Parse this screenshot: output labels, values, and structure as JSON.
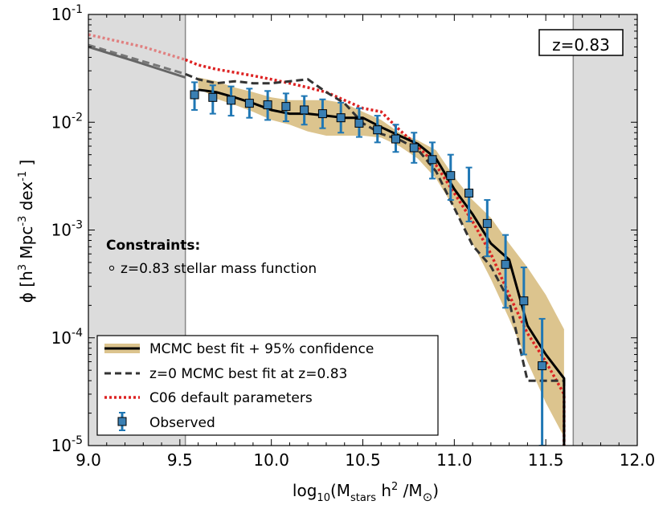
{
  "chart_data": {
    "type": "line",
    "xlabel_parts": {
      "base": "log",
      "sub1": "10",
      "mid": "(M",
      "sub2": "stars",
      "mid2": " h",
      "sup": "2",
      "tail": " /M",
      "sub3": "⊙",
      "end": ")"
    },
    "ylabel_parts": {
      "prefix": "ϕ [h",
      "sup1": "3",
      "mid": " Mpc",
      "sup2": "-3",
      "mid2": " dex",
      "sup3": "-1",
      "end": " ]"
    },
    "xlim": [
      9.0,
      12.0
    ],
    "ylim": [
      1e-05,
      0.1
    ],
    "yscale": "log",
    "xticks": [
      "9.0",
      "9.5",
      "10.0",
      "10.5",
      "11.0",
      "11.5",
      "12.0"
    ],
    "yticks": [
      {
        "base": "10",
        "exp": "-5"
      },
      {
        "base": "10",
        "exp": "-4"
      },
      {
        "base": "10",
        "exp": "-3"
      },
      {
        "base": "10",
        "exp": "-2"
      },
      {
        "base": "10",
        "exp": "-1"
      }
    ],
    "excluded_regions": [
      [
        9.0,
        9.53
      ],
      [
        11.65,
        12.0
      ]
    ],
    "redshift_label": "z=0.83",
    "constraints_title": "Constraints:",
    "constraints_item": "z=0.83 stellar mass function",
    "legend": [
      "MCMC best fit + 95% confidence",
      "z=0 MCMC best fit at z=0.83",
      "C06 default parameters",
      "Observed"
    ],
    "colors": {
      "band": "#dcc48e",
      "best": "#000000",
      "z0": "#333333",
      "c06": "#dd2222",
      "obs": "#1f77b4",
      "shade": "#dcdcdc"
    },
    "confidence_band": {
      "x": [
        9.6,
        9.7,
        9.8,
        9.9,
        10.0,
        10.1,
        10.2,
        10.3,
        10.4,
        10.5,
        10.6,
        10.7,
        10.8,
        10.9,
        11.0,
        11.1,
        11.2,
        11.3,
        11.4,
        11.5,
        11.6
      ],
      "upper": [
        0.026,
        0.024,
        0.021,
        0.019,
        0.017,
        0.016,
        0.016,
        0.016,
        0.015,
        0.0125,
        0.0105,
        0.008,
        0.0068,
        0.0055,
        0.0031,
        0.0019,
        0.0013,
        0.00075,
        0.00045,
        0.00025,
        0.00012
      ],
      "lower": [
        0.021,
        0.0165,
        0.0145,
        0.0125,
        0.0105,
        0.0095,
        0.0082,
        0.0075,
        0.0075,
        0.0075,
        0.0072,
        0.006,
        0.0046,
        0.003,
        0.0016,
        0.00075,
        0.00035,
        0.00015,
        6e-05,
        2.5e-05,
        1.2e-05
      ]
    },
    "best_fit": {
      "x": [
        9.6,
        9.7,
        9.8,
        9.9,
        10.0,
        10.1,
        10.2,
        10.3,
        10.4,
        10.5,
        10.6,
        10.7,
        10.8,
        10.9,
        11.0,
        11.1,
        11.2,
        11.3,
        11.4,
        11.5,
        11.6,
        11.6
      ],
      "y": [
        0.02,
        0.019,
        0.017,
        0.015,
        0.013,
        0.012,
        0.012,
        0.0115,
        0.011,
        0.011,
        0.009,
        0.0075,
        0.0063,
        0.0046,
        0.0024,
        0.0014,
        0.00075,
        0.00053,
        0.00013,
        7e-05,
        4.2e-05,
        1e-05
      ]
    },
    "best_fit_extension": {
      "x": [
        9.0,
        9.25,
        9.53
      ],
      "y": [
        0.05,
        0.037,
        0.026
      ]
    },
    "z0_fit": {
      "x": [
        9.0,
        9.53,
        9.6,
        9.7,
        9.8,
        9.9,
        10.0,
        10.1,
        10.2,
        10.3,
        10.4,
        10.5,
        10.6,
        10.7,
        10.8,
        10.9,
        11.0,
        11.1,
        11.2,
        11.3,
        11.4,
        11.5,
        11.6,
        11.6
      ],
      "y": [
        0.052,
        0.028,
        0.025,
        0.023,
        0.024,
        0.023,
        0.023,
        0.024,
        0.025,
        0.019,
        0.015,
        0.0098,
        0.0078,
        0.0069,
        0.0056,
        0.0035,
        0.0016,
        0.00072,
        0.00046,
        0.00022,
        4e-05,
        4e-05,
        4e-05,
        1e-05
      ]
    },
    "c06": {
      "x": [
        9.0,
        9.3,
        9.53,
        9.6,
        9.7,
        9.8,
        9.9,
        10.0,
        10.1,
        10.2,
        10.3,
        10.4,
        10.5,
        10.6,
        10.7,
        10.8,
        10.9,
        11.0,
        11.1,
        11.2,
        11.3,
        11.4,
        11.5,
        11.6,
        11.6
      ],
      "y": [
        0.065,
        0.05,
        0.038,
        0.034,
        0.031,
        0.029,
        0.027,
        0.025,
        0.023,
        0.021,
        0.019,
        0.016,
        0.0135,
        0.0125,
        0.0085,
        0.006,
        0.004,
        0.0022,
        0.0012,
        0.0006,
        0.00025,
        0.00011,
        6e-05,
        3e-05,
        1e-05
      ]
    },
    "observed": {
      "x": [
        9.58,
        9.68,
        9.78,
        9.88,
        9.98,
        10.08,
        10.18,
        10.28,
        10.38,
        10.48,
        10.58,
        10.68,
        10.78,
        10.88,
        10.98,
        11.08,
        11.18,
        11.28,
        11.38,
        11.48
      ],
      "y": [
        0.018,
        0.017,
        0.016,
        0.015,
        0.0145,
        0.014,
        0.013,
        0.012,
        0.011,
        0.0098,
        0.0085,
        0.007,
        0.0058,
        0.0045,
        0.0032,
        0.0022,
        0.00115,
        0.00048,
        0.00022,
        5.5e-05
      ],
      "err_low": [
        0.013,
        0.012,
        0.0115,
        0.011,
        0.0105,
        0.0102,
        0.0095,
        0.0088,
        0.008,
        0.0073,
        0.0065,
        0.0053,
        0.0042,
        0.003,
        0.0019,
        0.0012,
        0.00057,
        0.00019,
        7e-05,
        1e-05
      ],
      "err_high": [
        0.0235,
        0.022,
        0.0215,
        0.0205,
        0.0195,
        0.0185,
        0.0175,
        0.0163,
        0.0152,
        0.0135,
        0.0115,
        0.0095,
        0.008,
        0.0065,
        0.005,
        0.0038,
        0.0019,
        0.0009,
        0.00045,
        0.00015
      ]
    }
  }
}
